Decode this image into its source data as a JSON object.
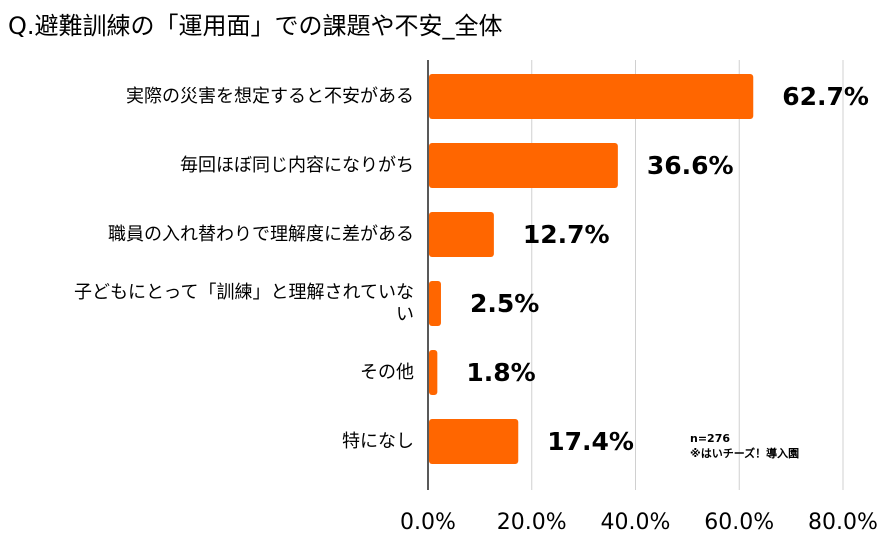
{
  "chart_data": {
    "type": "bar",
    "orientation": "horizontal",
    "title": "Q.避難訓練の「運用面」での課題や不安_全体",
    "categories": [
      [
        "実際の災害を想定すると不安がある"
      ],
      [
        "毎回ほぼ同じ内容になりがち"
      ],
      [
        "職員の入れ替わりで理解度に差がある"
      ],
      [
        "子どもにとって「訓練」と理解されていな",
        "い"
      ],
      [
        "その他"
      ],
      [
        "特になし"
      ]
    ],
    "values": [
      62.7,
      36.6,
      12.7,
      2.5,
      1.8,
      17.4
    ],
    "value_labels": [
      "62.7%",
      "36.6%",
      "12.7%",
      "2.5%",
      "1.8%",
      "17.4%"
    ],
    "xlim": [
      0,
      80
    ],
    "ticks": [
      0,
      20,
      40,
      60,
      80
    ],
    "tick_labels": [
      "0.0%",
      "20.0%",
      "40.0%",
      "60.0%",
      "80.0%"
    ],
    "xlabel": "",
    "ylabel": "",
    "grid": "vertical",
    "bar_color": "#ff6600",
    "grid_color": "#d0d0d0",
    "axis_color": "#222222",
    "notes": [
      "n=276",
      "※はいチーズ！導入園"
    ]
  }
}
